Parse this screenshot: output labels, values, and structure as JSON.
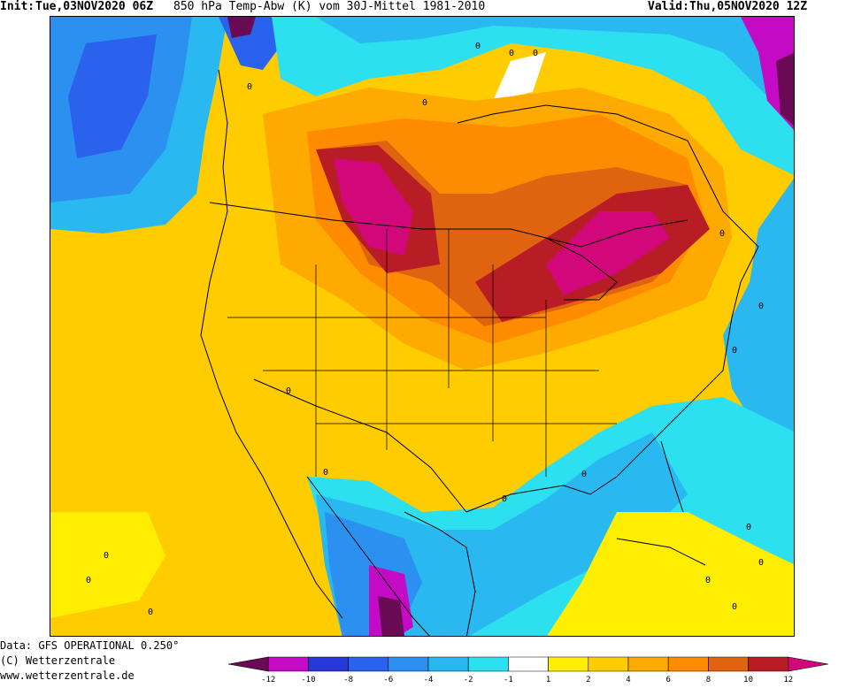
{
  "header": {
    "init_label": "Init:",
    "init_value": "Tue,03NOV2020 06Z",
    "product": "850 hPa Temp-Abw (K) vom 30J-Mittel 1981-2010",
    "valid_label": "Valid:",
    "valid_value": "Thu,05NOV2020 12Z"
  },
  "footer": {
    "data_source": "Data: GFS OPERATIONAL 0.250°",
    "copyright": "(C) Wetterzentrale",
    "website": "www.wetterzentrale.de"
  },
  "legend": {
    "colors": [
      "#6a0a55",
      "#c40ac4",
      "#2838d8",
      "#2a62ee",
      "#2c90f0",
      "#2ab8f0",
      "#2ce0f0",
      "#ffffff",
      "#ffee00",
      "#ffcc00",
      "#ffaa00",
      "#ff8c00",
      "#e06410",
      "#b81c24",
      "#d2087a"
    ],
    "tick_labels": [
      "-12",
      "-10",
      "-8",
      "-6",
      "-4",
      "-2",
      "-1",
      "1",
      "2",
      "4",
      "6",
      "8",
      "10",
      "12"
    ]
  },
  "map": {
    "background_color": "#fdd000",
    "contour_labels": [
      "0",
      "0",
      "0",
      "0",
      "0",
      "0",
      "0",
      "0",
      "0",
      "0",
      "0",
      "0",
      "0",
      "0",
      "0",
      "0",
      "0",
      "0",
      "0"
    ]
  }
}
